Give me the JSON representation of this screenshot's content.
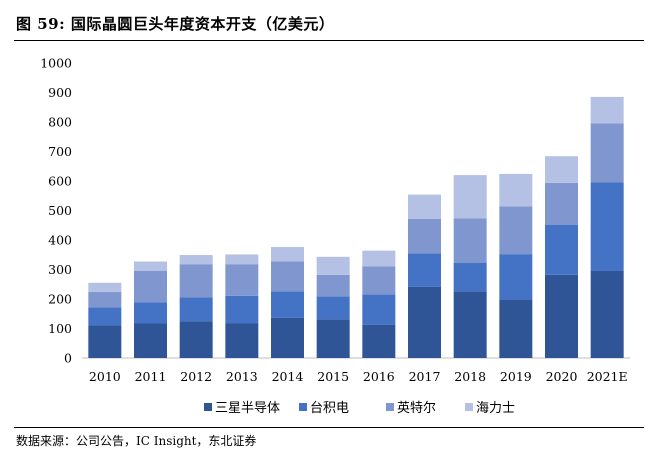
{
  "figure": {
    "title": "图 59:  国际晶圆巨头年度资本开支（亿美元）",
    "source": "数据来源：公司公告，IC Insight，东北证券"
  },
  "chart_data": {
    "type": "bar",
    "stacked": true,
    "categories": [
      "2010",
      "2011",
      "2012",
      "2013",
      "2014",
      "2015",
      "2016",
      "2017",
      "2018",
      "2019",
      "2020",
      "2021E"
    ],
    "ylim": [
      0,
      1000
    ],
    "yticks": [
      0,
      100,
      200,
      300,
      400,
      500,
      600,
      700,
      800,
      900,
      1000
    ],
    "grid": false,
    "legend_position": "bottom",
    "series": [
      {
        "name": "三星半导体",
        "color": "#2F5597",
        "values": [
          110,
          117,
          124,
          117,
          136,
          131,
          113,
          241,
          226,
          198,
          282,
          295
        ]
      },
      {
        "name": "台积电",
        "color": "#4472C4",
        "values": [
          62,
          71,
          82,
          94,
          90,
          78,
          102,
          113,
          96,
          154,
          170,
          300
        ]
      },
      {
        "name": "英特尔",
        "color": "#7F96CF",
        "values": [
          52,
          107,
          112,
          107,
          102,
          73,
          96,
          118,
          151,
          162,
          142,
          200
        ]
      },
      {
        "name": "海力士",
        "color": "#B4C0E4",
        "values": [
          31,
          32,
          31,
          33,
          48,
          61,
          53,
          82,
          147,
          110,
          90,
          90
        ]
      }
    ]
  }
}
